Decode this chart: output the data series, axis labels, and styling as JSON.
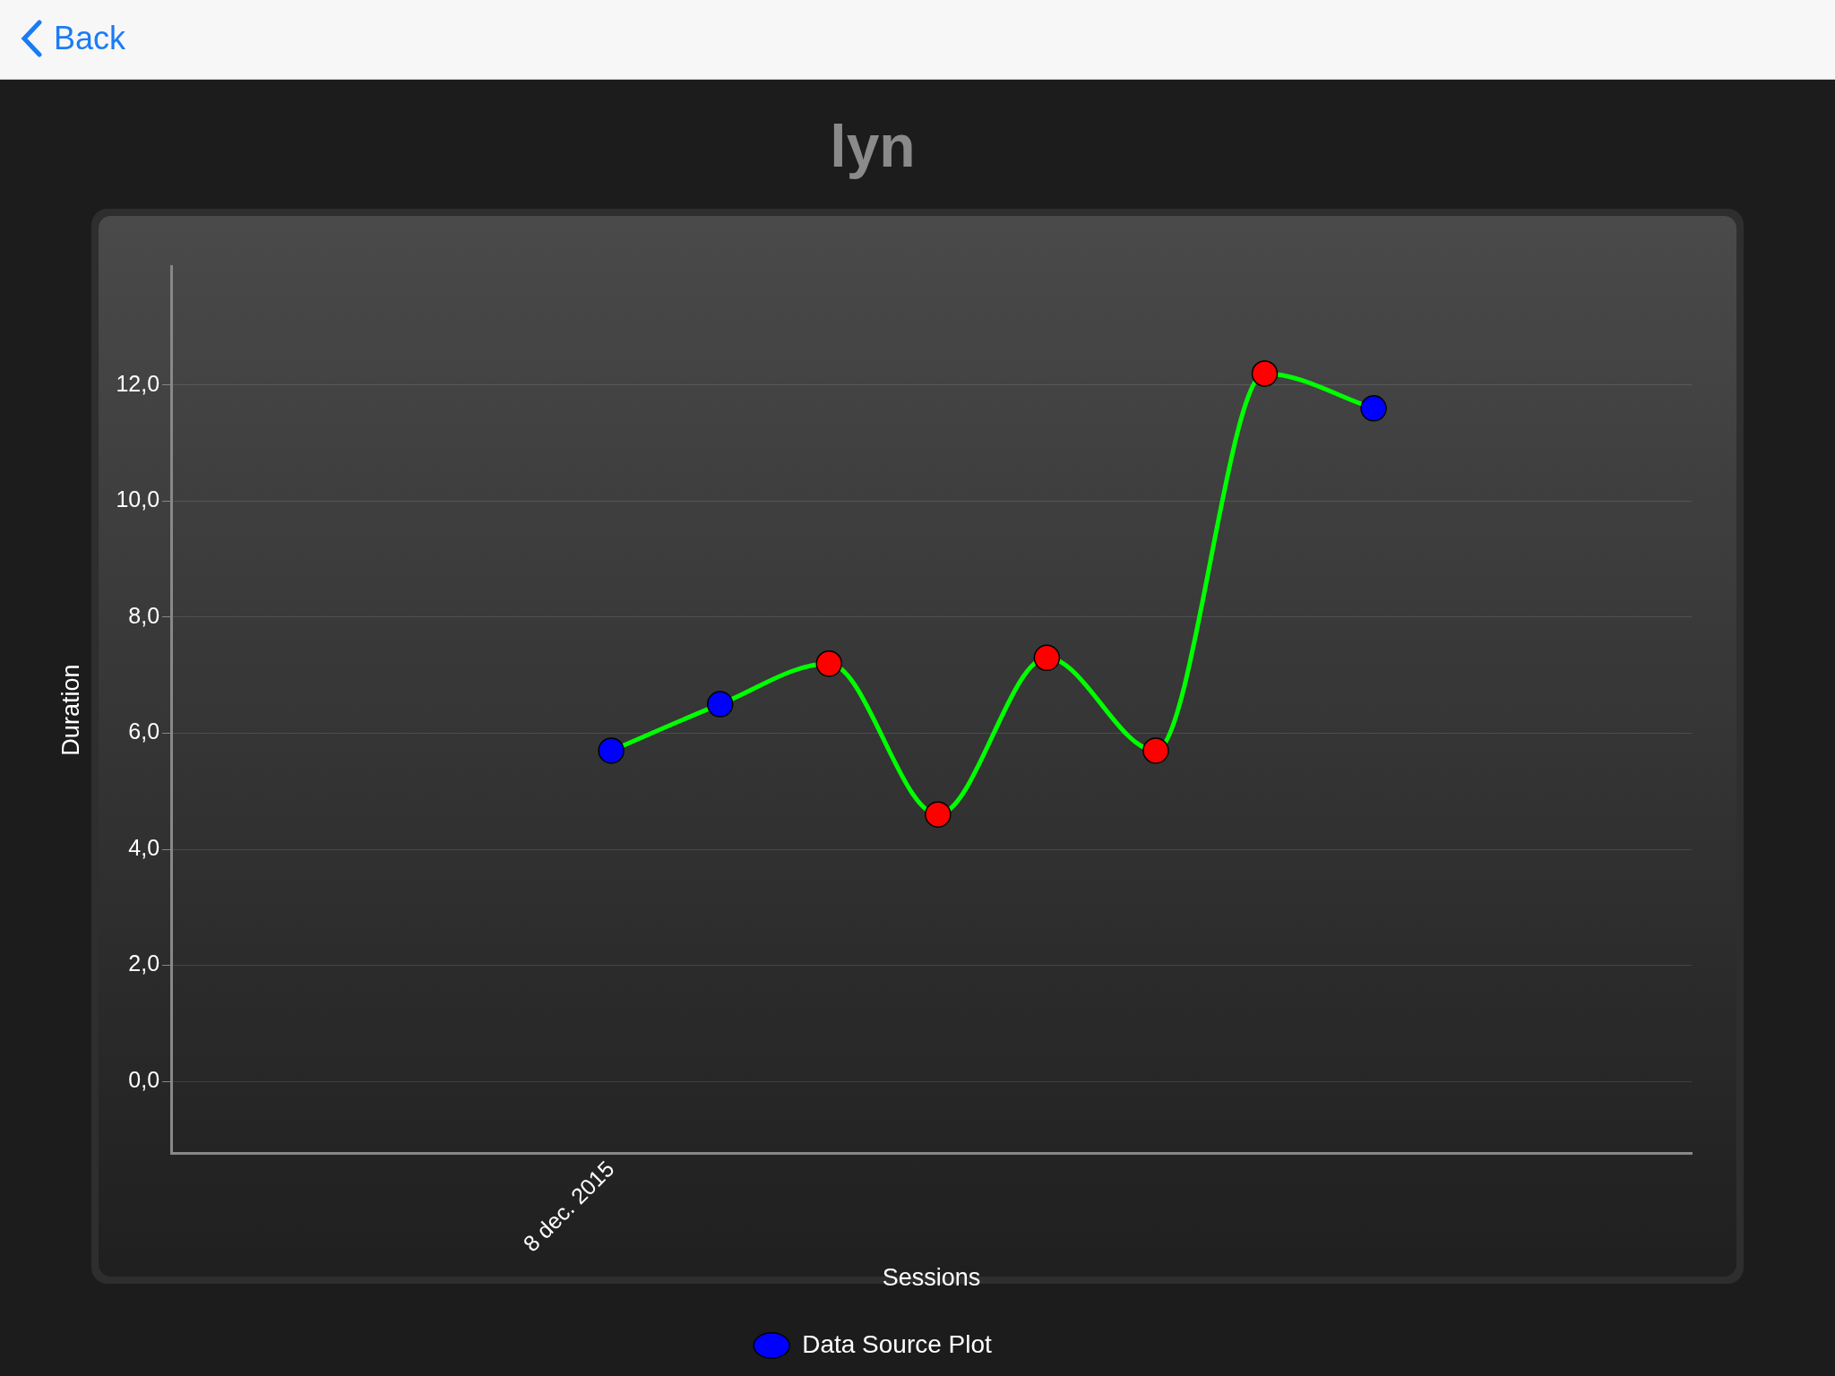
{
  "chart_data": {
    "type": "line",
    "title": "lyn",
    "xlabel": "Sessions",
    "ylabel": "Duration",
    "annotations": [
      "Back"
    ],
    "categories": [
      "8 dec. 2015",
      null,
      null,
      null,
      null,
      null,
      null,
      null
    ],
    "series": [
      {
        "name": "Data Source Plot",
        "color": "#00ff00",
        "colors": [
          "#0000ff",
          "#0000ff",
          "#ff0000",
          "#ff0000",
          "#ff0000",
          "#ff0000",
          "#ff0000",
          "#0000ff"
        ],
        "values": [
          5.7,
          6.5,
          7.2,
          4.6,
          7.3,
          5.7,
          12.2,
          11.6
        ]
      }
    ],
    "ylim": [
      -1.25,
      14.05
    ],
    "yticks": [
      {
        "value": 0,
        "label": "0,0"
      },
      {
        "value": 2,
        "label": "2,0"
      },
      {
        "value": 4,
        "label": "4,0"
      },
      {
        "value": 6,
        "label": "6,0"
      },
      {
        "value": 8,
        "label": "8,0"
      },
      {
        "value": 10,
        "label": "10,0"
      },
      {
        "value": 12,
        "label": "12,0"
      }
    ],
    "grid": "y",
    "legend": "bottom",
    "marker": "circle",
    "line_style": "solid"
  }
}
